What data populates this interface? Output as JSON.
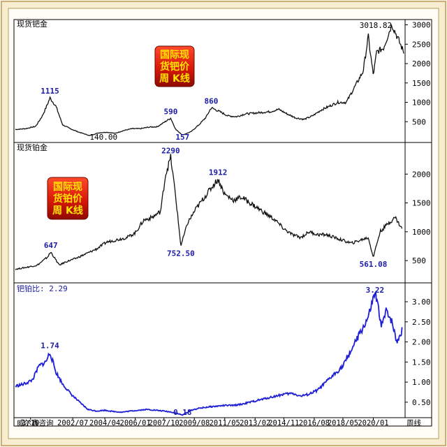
{
  "chart_data": [
    {
      "type": "line",
      "title": "现货钯金",
      "badge": [
        "国际现",
        "货钯价",
        "周 K线"
      ],
      "ylim": [
        0,
        3100
      ],
      "yticks": [
        500,
        1000,
        1500,
        2000,
        2500,
        3000
      ],
      "annotations": [
        {
          "label": "1115",
          "x": 2001.05,
          "y": 1115,
          "color": "blue"
        },
        {
          "label": "140.00",
          "x": 2003.4,
          "y": 140,
          "color": "black"
        },
        {
          "label": "590",
          "x": 2008.2,
          "y": 590,
          "color": "blue"
        },
        {
          "label": "157",
          "x": 2008.9,
          "y": 157,
          "color": "blue"
        },
        {
          "label": "860",
          "x": 2010.6,
          "y": 860,
          "color": "blue"
        },
        {
          "label": "3018.82",
          "x": 2021.3,
          "y": 3018.82,
          "color": "black"
        }
      ],
      "series": [
        {
          "x": [
            1999.0,
            1999.6,
            2000.2,
            2000.6,
            2000.9,
            2001.05,
            2001.4,
            2001.8,
            2002.2,
            2002.7,
            2003.2,
            2003.4,
            2003.9,
            2004.4,
            2004.9,
            2005.4,
            2005.9,
            2006.4,
            2006.9,
            2007.4,
            2008.2,
            2008.5,
            2008.9,
            2009.4,
            2009.9,
            2010.3,
            2010.6,
            2011.1,
            2011.6,
            2012.1,
            2012.6,
            2013.1,
            2013.6,
            2014.1,
            2014.6,
            2015.1,
            2015.6,
            2016.1,
            2016.6,
            2017.1,
            2017.6,
            2018.1,
            2018.6,
            2019.1,
            2019.6,
            2019.9,
            2020.2,
            2020.4,
            2020.8,
            2021.3,
            2021.8,
            2022.0
          ],
          "values": [
            300,
            320,
            380,
            650,
            950,
            1115,
            900,
            420,
            330,
            240,
            170,
            140,
            210,
            230,
            200,
            270,
            320,
            320,
            360,
            370,
            590,
            300,
            157,
            240,
            430,
            620,
            860,
            760,
            650,
            630,
            700,
            720,
            740,
            760,
            820,
            700,
            600,
            560,
            650,
            800,
            900,
            1000,
            1000,
            1400,
            1800,
            2700,
            1700,
            2300,
            2400,
            3018,
            2500,
            2300
          ]
        }
      ]
    },
    {
      "type": "line",
      "title": "现货铂金",
      "badge": [
        "国际现",
        "货铂价",
        "周 K线"
      ],
      "ylim": [
        150,
        2500
      ],
      "yticks": [
        500,
        1000,
        1500,
        2000
      ],
      "annotations": [
        {
          "label": "647",
          "x": 2001.1,
          "y": 647
        },
        {
          "label": "2290",
          "x": 2008.2,
          "y": 2290
        },
        {
          "label": "752.50",
          "x": 2008.8,
          "y": 752.5
        },
        {
          "label": "1912",
          "x": 2011.0,
          "y": 1912
        },
        {
          "label": "561.08",
          "x": 2020.2,
          "y": 561.08
        }
      ],
      "series": [
        {
          "x": [
            1999.0,
            1999.6,
            2000.3,
            2000.9,
            2001.1,
            2001.6,
            2002.0,
            2002.6,
            2003.2,
            2003.8,
            2004.4,
            2005.0,
            2005.6,
            2006.1,
            2006.6,
            2007.1,
            2007.6,
            2007.9,
            2008.2,
            2008.5,
            2008.8,
            2009.2,
            2009.7,
            2010.2,
            2010.7,
            2011.0,
            2011.4,
            2011.9,
            2012.4,
            2012.9,
            2013.4,
            2013.9,
            2014.4,
            2014.9,
            2015.4,
            2015.9,
            2016.4,
            2016.9,
            2017.4,
            2017.9,
            2018.4,
            2018.9,
            2019.4,
            2019.9,
            2020.2,
            2020.6,
            2021.1,
            2021.5,
            2021.9
          ],
          "values": [
            350,
            380,
            420,
            560,
            647,
            420,
            480,
            540,
            620,
            700,
            820,
            860,
            900,
            980,
            1200,
            1250,
            1350,
            2000,
            2290,
            1600,
            752.5,
            1150,
            1400,
            1600,
            1800,
            1912,
            1650,
            1550,
            1600,
            1500,
            1400,
            1300,
            1200,
            1050,
            950,
            900,
            1000,
            950,
            950,
            900,
            850,
            800,
            850,
            900,
            561.08,
            1000,
            1150,
            1250,
            1050
          ]
        }
      ]
    },
    {
      "type": "line",
      "title": "钯铂比: 2.29",
      "ylim": [
        0.15,
        3.4
      ],
      "yticks": [
        0.5,
        1.0,
        1.5,
        2.0,
        2.5,
        3.0
      ],
      "ytick_labels": [
        "0.50",
        "1.00",
        "1.50",
        "2.00",
        "2.50",
        "3.00"
      ],
      "xtick_labels": [
        {
          "x": 1999.9,
          "label": "1/10"
        },
        {
          "x": 2002.4,
          "label": "2002/07"
        },
        {
          "x": 2004.3,
          "label": "2004/04"
        },
        {
          "x": 2006.1,
          "label": "2006/01"
        },
        {
          "x": 2007.8,
          "label": "2007/10"
        },
        {
          "x": 2009.6,
          "label": "2009/08"
        },
        {
          "x": 2011.4,
          "label": "2011/05"
        },
        {
          "x": 2013.2,
          "label": "2013/02"
        },
        {
          "x": 2014.9,
          "label": "2014/11"
        },
        {
          "x": 2016.7,
          "label": "2016/08"
        },
        {
          "x": 2018.4,
          "label": "2018/05"
        },
        {
          "x": 2020.2,
          "label": "2020/01"
        }
      ],
      "annotations": [
        {
          "label": "1.74",
          "x": 2001.05,
          "y": 1.74
        },
        {
          "label": "0.18",
          "x": 2008.9,
          "y": 0.18
        },
        {
          "label": "3.22",
          "x": 2020.3,
          "y": 3.22
        }
      ],
      "series": [
        {
          "x": [
            1999.0,
            1999.5,
            2000.0,
            2000.4,
            2000.8,
            2001.05,
            2001.4,
            2001.8,
            2002.3,
            2002.8,
            2003.3,
            2003.8,
            2004.3,
            2004.8,
            2005.3,
            2005.8,
            2006.3,
            2006.8,
            2007.3,
            2007.8,
            2008.3,
            2008.9,
            2009.4,
            2009.9,
            2010.4,
            2010.9,
            2011.4,
            2011.9,
            2012.4,
            2012.9,
            2013.4,
            2013.9,
            2014.4,
            2014.9,
            2015.4,
            2015.9,
            2016.4,
            2016.9,
            2017.4,
            2017.9,
            2018.4,
            2018.9,
            2019.4,
            2019.9,
            2020.3,
            2020.7,
            2021.0,
            2021.3,
            2021.6,
            2021.9
          ],
          "values": [
            0.9,
            0.95,
            1.05,
            1.4,
            1.5,
            1.74,
            1.25,
            0.95,
            0.7,
            0.5,
            0.32,
            0.28,
            0.3,
            0.27,
            0.25,
            0.28,
            0.3,
            0.32,
            0.3,
            0.28,
            0.25,
            0.18,
            0.3,
            0.35,
            0.38,
            0.4,
            0.42,
            0.42,
            0.45,
            0.5,
            0.55,
            0.6,
            0.65,
            0.7,
            0.72,
            0.65,
            0.7,
            0.8,
            1.0,
            1.2,
            1.4,
            1.8,
            2.2,
            2.6,
            3.22,
            2.4,
            2.8,
            2.5,
            2.0,
            2.29
          ]
        }
      ]
    }
  ],
  "footer": {
    "left_label": "威尔鑫咨询",
    "right_label": "周线"
  }
}
